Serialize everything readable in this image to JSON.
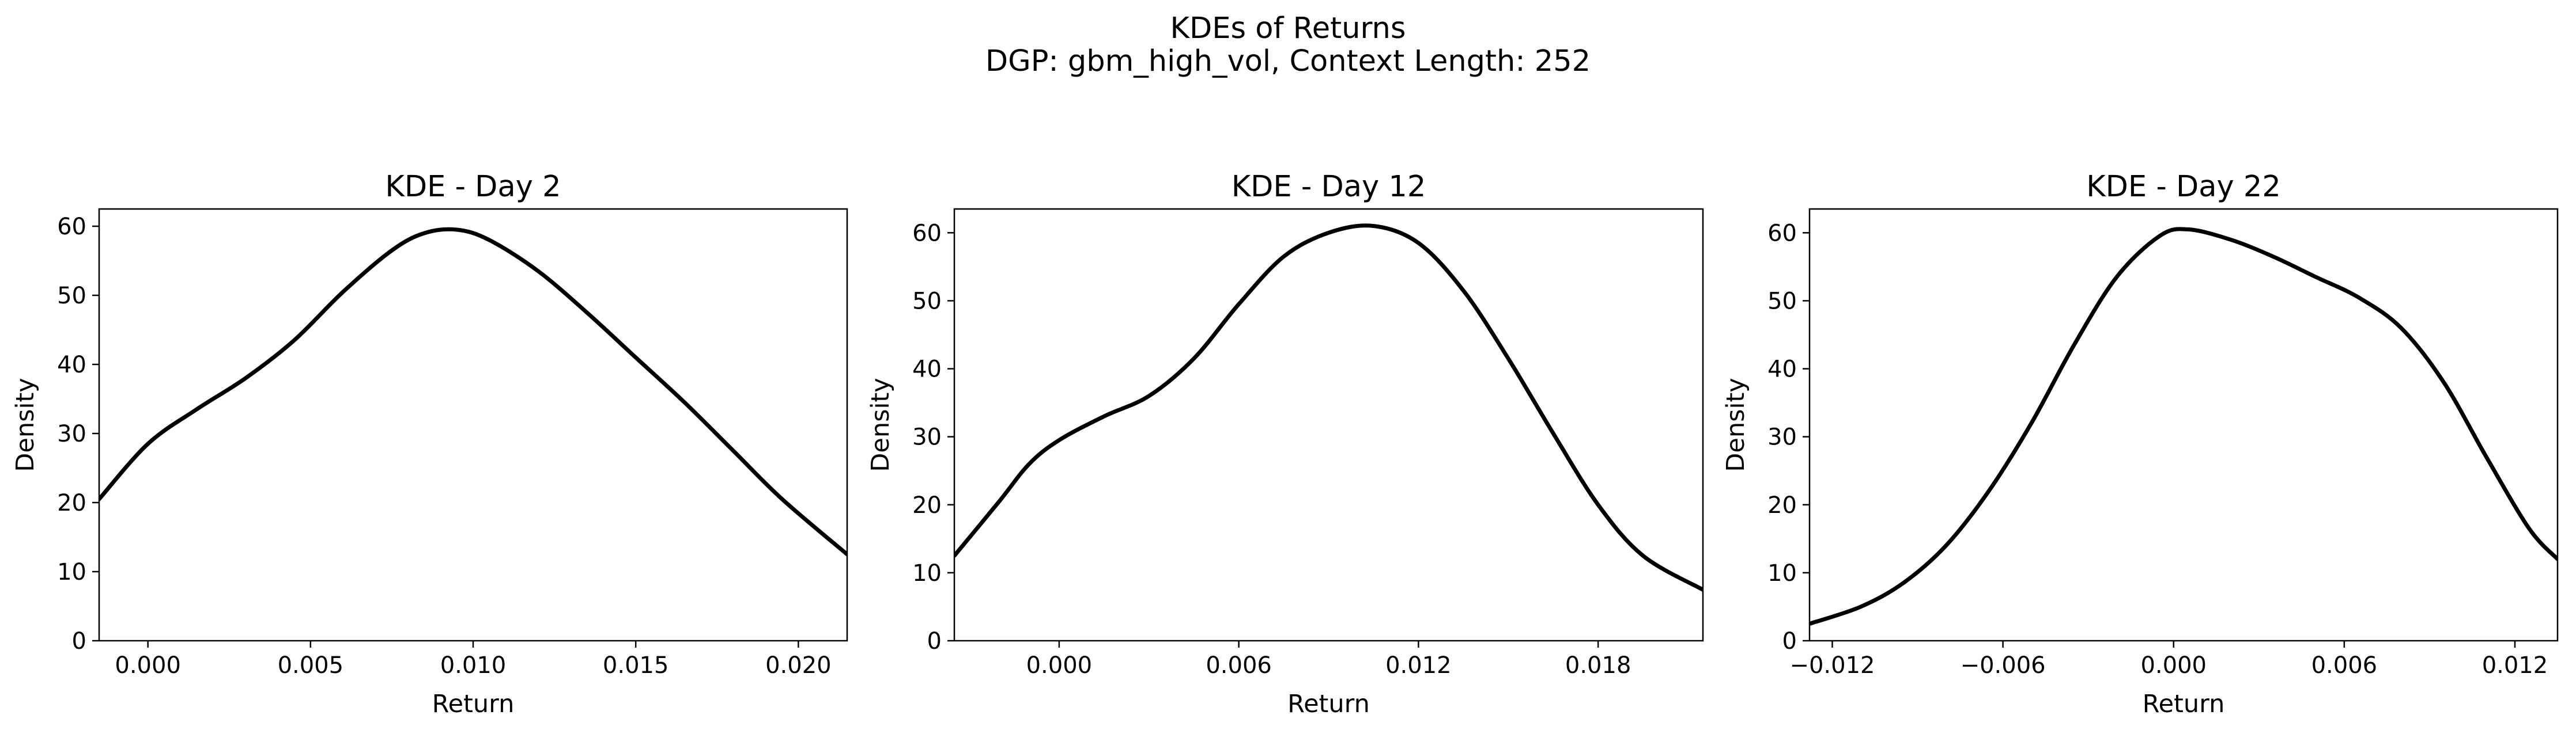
{
  "figure": {
    "title_line1": "KDEs of Returns",
    "title_line2": "DGP: gbm_high_vol, Context Length: 252"
  },
  "chart_data": [
    {
      "type": "line",
      "title": "KDE - Day 2",
      "xlabel": "Return",
      "ylabel": "Density",
      "xlim": [
        -0.0015,
        0.0215
      ],
      "ylim": [
        0,
        62.5
      ],
      "xticks": [
        0.0,
        0.005,
        0.01,
        0.015,
        0.02
      ],
      "xtick_labels": [
        "0.000",
        "0.005",
        "0.010",
        "0.015",
        "0.020"
      ],
      "yticks": [
        0,
        10,
        20,
        30,
        40,
        50,
        60
      ],
      "ytick_labels": [
        "0",
        "10",
        "20",
        "30",
        "40",
        "50",
        "60"
      ],
      "grid": false,
      "color": "#000000",
      "x": [
        -0.0015,
        0.0,
        0.0015,
        0.003,
        0.0045,
        0.006,
        0.0075,
        0.0085,
        0.0095,
        0.0105,
        0.012,
        0.0135,
        0.015,
        0.0165,
        0.018,
        0.0195,
        0.0215
      ],
      "y": [
        20.5,
        28.5,
        33.5,
        38.0,
        43.5,
        50.5,
        56.5,
        59.0,
        59.5,
        58.0,
        53.5,
        47.5,
        41.0,
        34.5,
        27.5,
        20.5,
        12.5
      ]
    },
    {
      "type": "line",
      "title": "KDE - Day 12",
      "xlabel": "Return",
      "ylabel": "Density",
      "xlim": [
        -0.0035,
        0.0215
      ],
      "ylim": [
        0,
        63.5
      ],
      "xticks": [
        0.0,
        0.006,
        0.012,
        0.018
      ],
      "xtick_labels": [
        "0.000",
        "0.006",
        "0.012",
        "0.018"
      ],
      "yticks": [
        0,
        10,
        20,
        30,
        40,
        50,
        60
      ],
      "ytick_labels": [
        "0",
        "10",
        "20",
        "30",
        "40",
        "50",
        "60"
      ],
      "grid": false,
      "color": "#000000",
      "x": [
        -0.0035,
        -0.002,
        -0.001,
        0.0,
        0.0015,
        0.003,
        0.0045,
        0.006,
        0.0075,
        0.009,
        0.0105,
        0.012,
        0.0135,
        0.015,
        0.0165,
        0.018,
        0.0195,
        0.0215
      ],
      "y": [
        12.5,
        20.5,
        26.0,
        29.5,
        33.0,
        36.0,
        41.5,
        49.5,
        56.5,
        60.0,
        61.0,
        58.5,
        51.5,
        41.5,
        30.5,
        20.0,
        12.5,
        7.5
      ]
    },
    {
      "type": "line",
      "title": "KDE - Day 22",
      "xlabel": "Return",
      "ylabel": "Density",
      "xlim": [
        -0.0128,
        0.0135
      ],
      "ylim": [
        0,
        63.5
      ],
      "xticks": [
        -0.012,
        -0.006,
        0.0,
        0.006,
        0.012
      ],
      "xtick_labels": [
        "−0.012",
        "−0.006",
        "0.000",
        "0.006",
        "0.012"
      ],
      "yticks": [
        0,
        10,
        20,
        30,
        40,
        50,
        60
      ],
      "ytick_labels": [
        "0",
        "10",
        "20",
        "30",
        "40",
        "50",
        "60"
      ],
      "grid": false,
      "color": "#000000",
      "x": [
        -0.0128,
        -0.011,
        -0.0095,
        -0.008,
        -0.0065,
        -0.005,
        -0.0035,
        -0.002,
        -0.0005,
        0.0005,
        0.002,
        0.0035,
        0.005,
        0.0065,
        0.008,
        0.0095,
        0.011,
        0.0125,
        0.0135
      ],
      "y": [
        2.5,
        5.0,
        8.5,
        14.0,
        22.0,
        32.0,
        43.5,
        53.5,
        59.5,
        60.5,
        59.0,
        56.5,
        53.5,
        50.5,
        46.0,
        38.0,
        27.0,
        16.5,
        12.0
      ]
    }
  ]
}
